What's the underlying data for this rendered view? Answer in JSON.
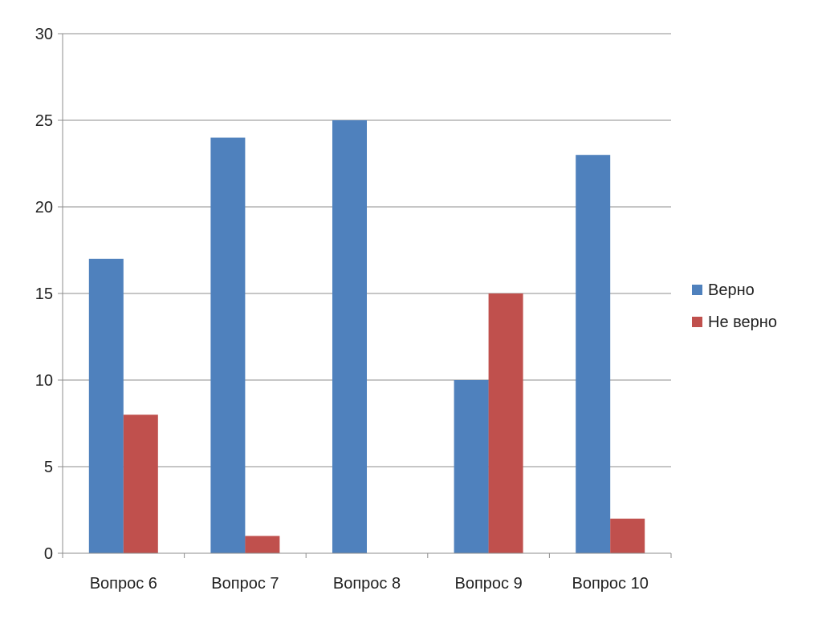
{
  "chart_data": {
    "type": "bar",
    "categories": [
      "Вопрос 6",
      "Вопрос 7",
      "Вопрос 8",
      "Вопрос 9",
      "Вопрос 10"
    ],
    "series": [
      {
        "name": "Верно",
        "values": [
          17,
          24,
          25,
          10,
          23
        ],
        "color": "#4f81bd"
      },
      {
        "name": "Не верно",
        "values": [
          8,
          1,
          0,
          15,
          2
        ],
        "color": "#c0504d"
      }
    ],
    "ylim": [
      0,
      30
    ],
    "yticks": [
      0,
      5,
      10,
      15,
      20,
      25,
      30
    ],
    "grid": true,
    "legend": "right",
    "title": "",
    "xlabel": "",
    "ylabel": ""
  }
}
